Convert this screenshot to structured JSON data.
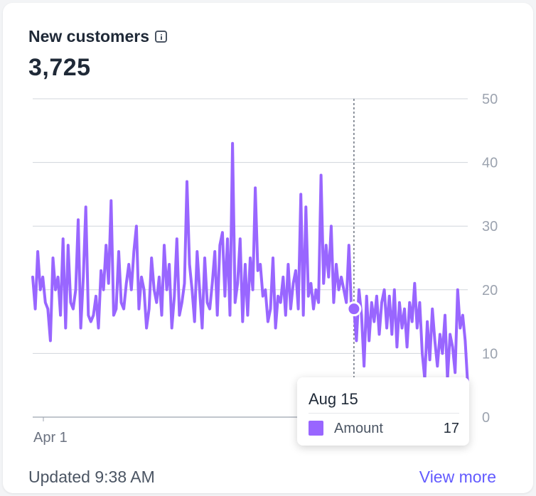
{
  "card": {
    "title": "New customers",
    "value": "3,725",
    "updated": "Updated 9:38 AM",
    "view_more": "View more"
  },
  "colors": {
    "series": "#9966ff",
    "grid": "#d1d5db",
    "axis_text": "#9ca3af",
    "link": "#635bff"
  },
  "tooltip": {
    "date": "Aug 15",
    "label": "Amount",
    "value": "17"
  },
  "chart_data": {
    "type": "line",
    "series": [
      {
        "name": "Amount",
        "values": [
          22,
          17,
          26,
          20,
          22,
          18,
          17,
          12,
          25,
          20,
          22,
          16,
          28,
          14,
          27,
          18,
          17,
          20,
          31,
          14,
          22,
          33,
          16,
          15,
          16,
          19,
          14,
          23,
          20,
          27,
          21,
          34,
          16,
          17,
          26,
          18,
          17,
          21,
          24,
          20,
          26,
          30,
          17,
          22,
          20,
          14,
          17,
          25,
          20,
          18,
          22,
          16,
          27,
          20,
          24,
          14,
          19,
          28,
          16,
          18,
          21,
          37,
          24,
          20,
          15,
          26,
          20,
          14,
          25,
          18,
          17,
          21,
          26,
          16,
          27,
          29,
          19,
          28,
          16,
          43,
          18,
          21,
          28,
          15,
          24,
          16,
          25,
          20,
          36,
          23,
          24,
          19,
          20,
          15,
          17,
          25,
          14,
          19,
          18,
          22,
          16,
          24,
          17,
          21,
          23,
          17,
          35,
          16,
          33,
          19,
          21,
          17,
          20,
          18,
          38,
          21,
          27,
          22,
          30,
          18,
          24,
          20,
          22,
          20,
          18,
          27,
          17
        ],
        "color": "#9966ff"
      },
      {
        "name": "Amount",
        "values": [
          17,
          12,
          20,
          16,
          8,
          19,
          12,
          18,
          15,
          19,
          13,
          18,
          20,
          14,
          19,
          13,
          20,
          11,
          18,
          14,
          17,
          11,
          18,
          15,
          21,
          14,
          18,
          10,
          6,
          15,
          9,
          17,
          12,
          8,
          13,
          10,
          16,
          6,
          13,
          11,
          7,
          20,
          14,
          16,
          12,
          5
        ],
        "color": "#9966ff"
      }
    ],
    "highlight": {
      "date": "Aug 15",
      "value": 17
    },
    "x_tick_labels": [
      "Apr 1",
      ""
    ],
    "y_ticks": [
      0,
      10,
      20,
      30,
      40,
      50
    ],
    "ylim": [
      0,
      50
    ],
    "grid": true,
    "y_axis_side": "right",
    "title": "",
    "xlabel": "",
    "ylabel": ""
  }
}
